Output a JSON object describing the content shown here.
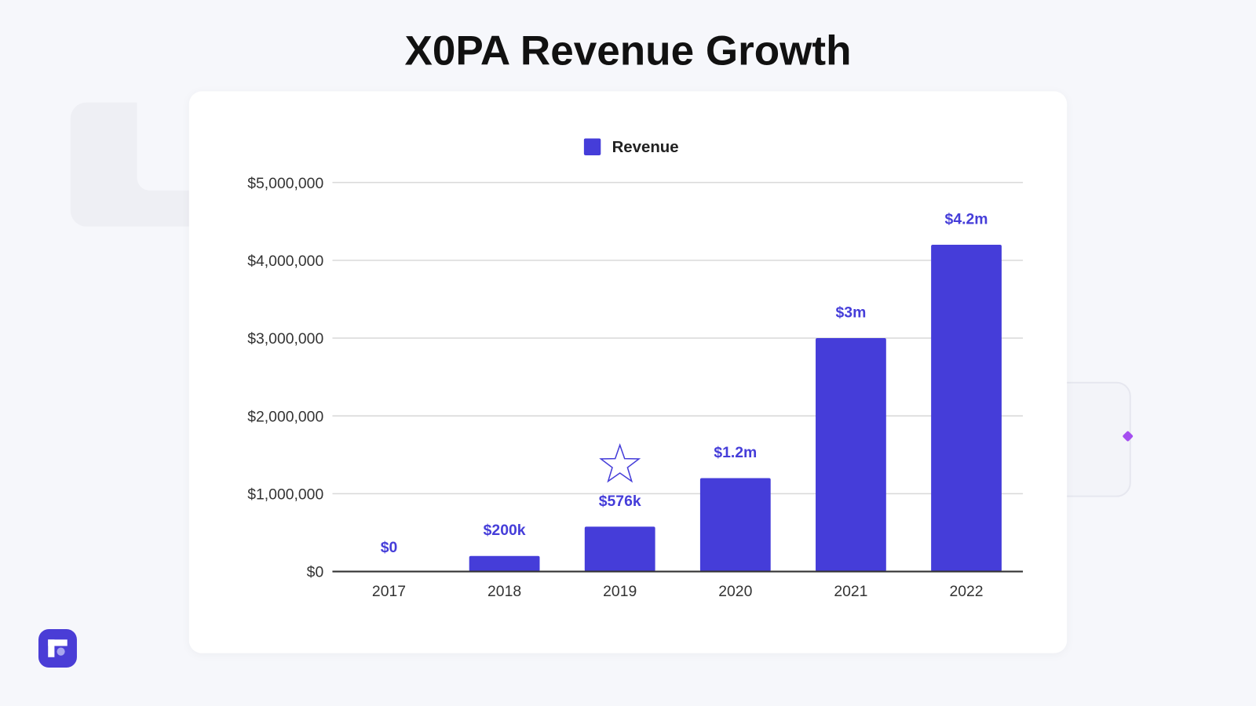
{
  "title": "X0PA Revenue Growth",
  "colors": {
    "bar": "#453dd9",
    "label": "#453dd9",
    "grid": "#d9d9d9",
    "axis": "#333333"
  },
  "chart_data": {
    "type": "bar",
    "title": "X0PA Revenue Growth",
    "legend": {
      "entries": [
        "Revenue"
      ],
      "position": "top-center"
    },
    "categories": [
      "2017",
      "2018",
      "2019",
      "2020",
      "2021",
      "2022"
    ],
    "series": [
      {
        "name": "Revenue",
        "values": [
          0,
          200000,
          576000,
          1200000,
          3000000,
          4200000
        ]
      }
    ],
    "data_labels": [
      "$0",
      "$200k",
      "$576k",
      "$1.2m",
      "$3m",
      "$4.2m"
    ],
    "ylim": [
      0,
      5000000
    ],
    "yticks": [
      0,
      1000000,
      2000000,
      3000000,
      4000000,
      5000000
    ],
    "ytick_labels": [
      "$0",
      "$1,000,000",
      "$2,000,000",
      "$3,000,000",
      "$4,000,000",
      "$5,000,000"
    ],
    "grid": true,
    "annotation": {
      "type": "star",
      "category": "2019"
    },
    "xlabel": "",
    "ylabel": ""
  }
}
